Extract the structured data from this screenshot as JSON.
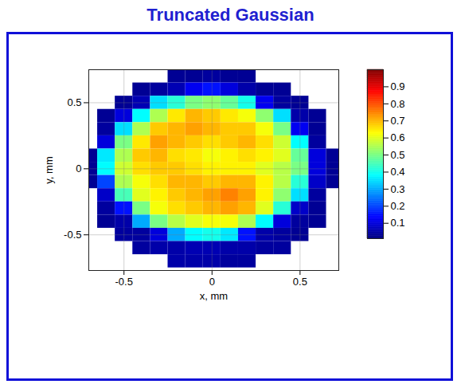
{
  "chart_data": {
    "type": "heatmap",
    "title": "Truncated Gaussian",
    "x_label": "x, mm",
    "y_label": "y, mm",
    "x": [
      -0.7,
      -0.6,
      -0.5,
      -0.4,
      -0.3,
      -0.2,
      -0.1,
      0,
      0.1,
      0.2,
      0.3,
      0.4,
      0.5,
      0.6,
      0.7
    ],
    "y": [
      0.7,
      0.6,
      0.5,
      0.4,
      0.3,
      0.2,
      0.1,
      0,
      -0.1,
      -0.2,
      -0.3,
      -0.4,
      -0.5,
      -0.6,
      -0.7
    ],
    "cells": [
      [
        null,
        null,
        null,
        null,
        null,
        0.03,
        0.03,
        0.04,
        0.03,
        0.03,
        null,
        null,
        null,
        null,
        null
      ],
      [
        null,
        null,
        null,
        0.03,
        0.04,
        0.06,
        0.12,
        0.15,
        0.1,
        0.05,
        0.03,
        0.03,
        null,
        null,
        null
      ],
      [
        null,
        null,
        0.03,
        0.06,
        0.35,
        0.42,
        0.5,
        0.52,
        0.48,
        0.4,
        0.12,
        0.04,
        0.03,
        null,
        null
      ],
      [
        null,
        0.03,
        0.1,
        0.38,
        0.55,
        0.65,
        0.7,
        0.68,
        0.65,
        0.62,
        0.52,
        0.35,
        0.05,
        0.03,
        null
      ],
      [
        null,
        0.04,
        0.35,
        0.55,
        0.68,
        0.7,
        0.72,
        0.7,
        0.68,
        0.68,
        0.62,
        0.5,
        0.12,
        0.03,
        null
      ],
      [
        null,
        0.1,
        0.5,
        0.65,
        0.72,
        0.7,
        0.68,
        0.66,
        0.68,
        0.7,
        0.66,
        0.58,
        0.38,
        0.04,
        null
      ],
      [
        0.03,
        0.36,
        0.55,
        0.68,
        0.7,
        0.66,
        0.65,
        0.62,
        0.64,
        0.66,
        0.64,
        0.6,
        0.48,
        0.1,
        0.03
      ],
      [
        0.03,
        0.38,
        0.58,
        0.66,
        0.68,
        0.68,
        0.66,
        0.64,
        0.64,
        0.64,
        0.6,
        0.56,
        0.5,
        0.1,
        0.03
      ],
      [
        0.03,
        0.2,
        0.55,
        0.62,
        0.66,
        0.7,
        0.7,
        0.68,
        0.7,
        0.7,
        0.64,
        0.56,
        0.42,
        0.08,
        0.03
      ],
      [
        null,
        0.08,
        0.45,
        0.6,
        0.64,
        0.68,
        0.7,
        0.72,
        0.75,
        0.72,
        0.64,
        0.52,
        0.35,
        0.04,
        null
      ],
      [
        null,
        0.04,
        0.15,
        0.5,
        0.62,
        0.66,
        0.68,
        0.7,
        0.72,
        0.7,
        0.6,
        0.42,
        0.08,
        0.03,
        null
      ],
      [
        null,
        0.03,
        0.05,
        0.3,
        0.5,
        0.56,
        0.6,
        0.62,
        0.62,
        0.55,
        0.38,
        0.1,
        0.04,
        0.03,
        null
      ],
      [
        null,
        null,
        0.04,
        0.04,
        0.1,
        0.3,
        0.38,
        0.4,
        0.36,
        0.15,
        0.05,
        0.04,
        0.03,
        null,
        null
      ],
      [
        null,
        null,
        null,
        0.04,
        0.05,
        0.05,
        0.06,
        0.06,
        0.05,
        0.05,
        0.04,
        0.04,
        null,
        null,
        null
      ],
      [
        null,
        null,
        null,
        null,
        null,
        0.05,
        0.05,
        0.05,
        0.04,
        0.04,
        null,
        null,
        null,
        null,
        null
      ]
    ],
    "xlim": [
      -0.7,
      0.72
    ],
    "ylim": [
      -0.77,
      0.75
    ],
    "xticks": [
      -0.5,
      0,
      0.5
    ],
    "yticks": [
      -0.5,
      0,
      0.5
    ],
    "grid": true,
    "colorbar": {
      "range": [
        0.01,
        1
      ],
      "ticks": [
        0.1,
        0.2,
        0.3,
        0.4,
        0.5,
        0.6,
        0.7,
        0.8,
        0.9
      ]
    }
  }
}
